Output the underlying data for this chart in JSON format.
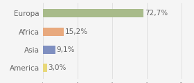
{
  "categories": [
    "Europa",
    "Africa",
    "Asia",
    "America"
  ],
  "values": [
    72.7,
    15.2,
    9.1,
    3.0
  ],
  "labels": [
    "72,7%",
    "15,2%",
    "9,1%",
    "3,0%"
  ],
  "bar_colors": [
    "#a8bb8a",
    "#e8a97e",
    "#7f8fc0",
    "#e8d87a"
  ],
  "xlim": [
    0,
    105
  ],
  "background_color": "#f5f5f5",
  "text_color": "#666666",
  "fontsize": 7.5,
  "bar_height": 0.45,
  "grid_ticks": [
    0,
    25,
    50,
    75,
    100
  ],
  "grid_color": "#dddddd",
  "figsize": [
    2.8,
    1.2
  ],
  "dpi": 100
}
